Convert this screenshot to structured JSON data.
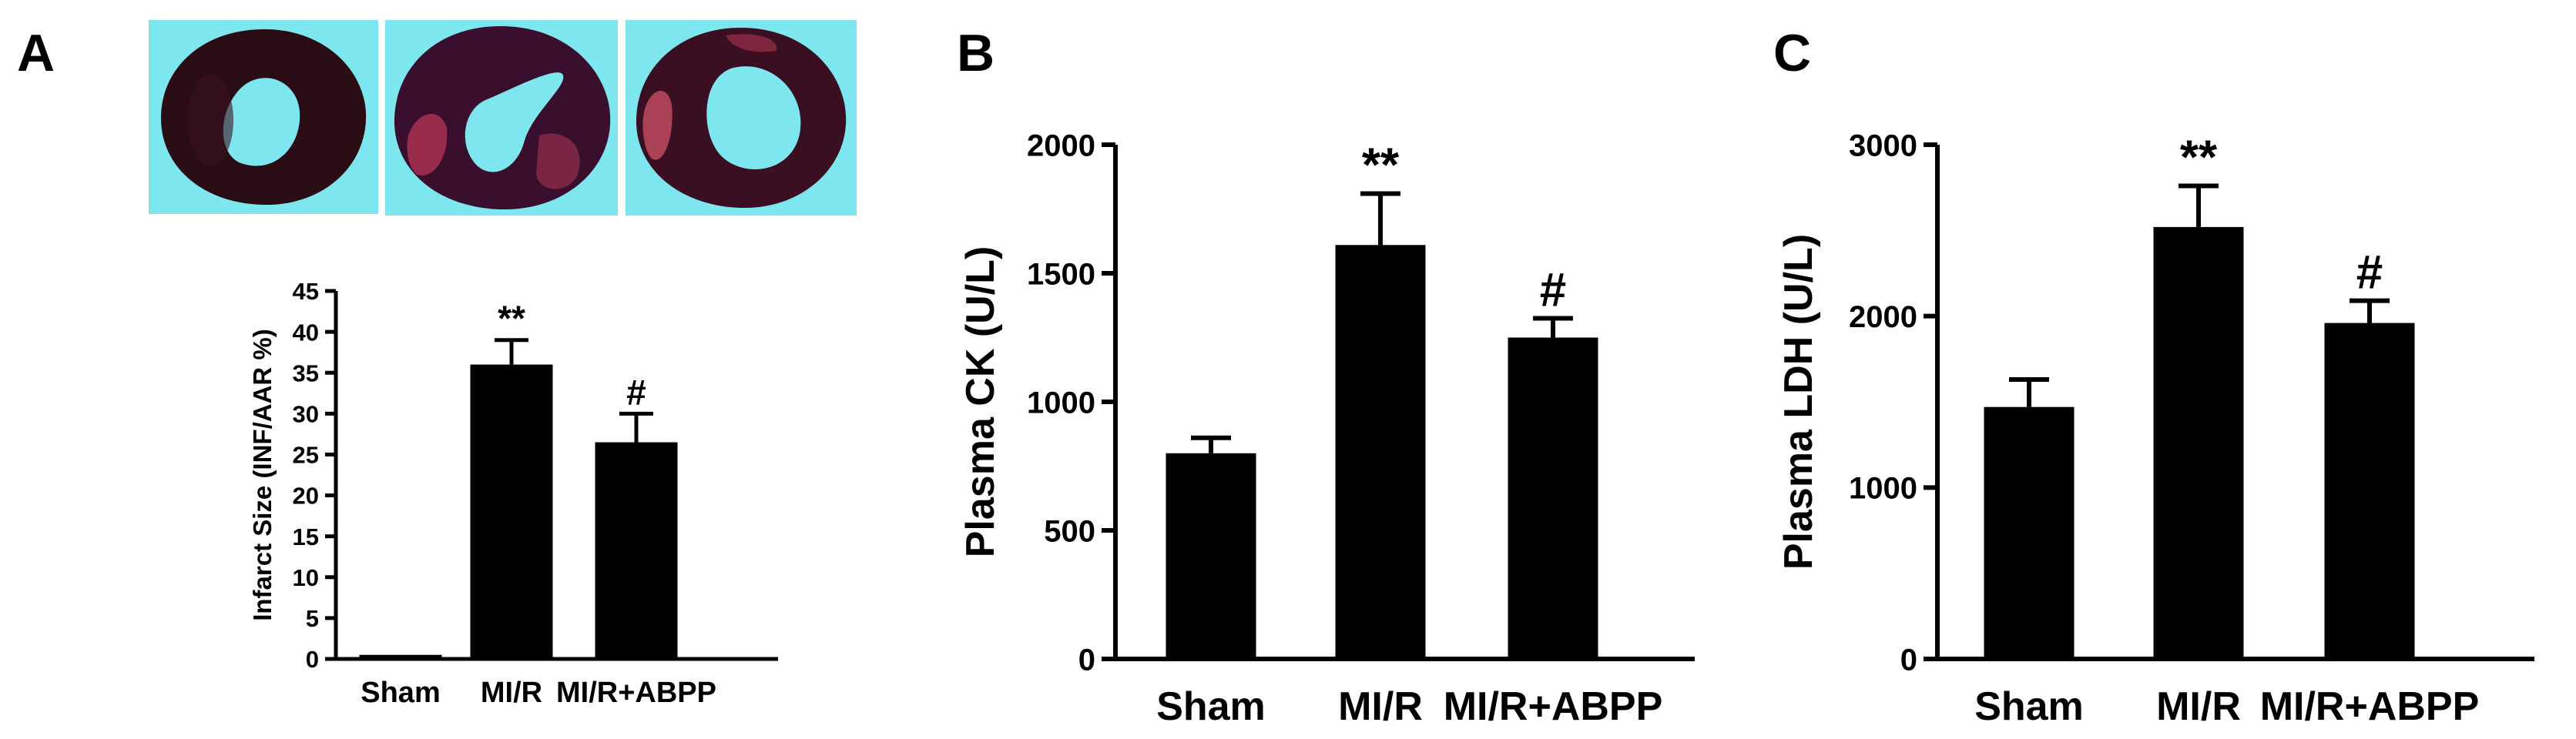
{
  "panels": {
    "a": {
      "letter": "A"
    },
    "b": {
      "letter": "B"
    },
    "c": {
      "letter": "C"
    }
  },
  "images": {
    "a": [
      {
        "name": "sham-heart-slice",
        "background": "#7ee6ee",
        "tissue": "#2a0c14",
        "highlight": "#3b1020"
      },
      {
        "name": "mir-heart-slice",
        "background": "#7ee6ee",
        "tissue": "#3a0f2e",
        "highlight": "#b03250"
      },
      {
        "name": "mir-abpp-heart-slice",
        "background": "#7ee6ee",
        "tissue": "#3b0f22",
        "highlight": "#c04a5e"
      }
    ]
  },
  "chart_data": [
    {
      "id": "a",
      "type": "bar",
      "categories": [
        "Sham",
        "MI/R",
        "MI/R+ABPP"
      ],
      "values": [
        0.5,
        36,
        26.5
      ],
      "errors": [
        0,
        3,
        3.5
      ],
      "annotations": [
        "",
        "**",
        "#"
      ],
      "title": "",
      "xlabel": "",
      "ylabel": "Infarct Size (INF/AAR %)",
      "ylim": [
        0,
        45
      ],
      "yticks": [
        0,
        5,
        10,
        15,
        20,
        25,
        30,
        35,
        40,
        45
      ],
      "grid": false,
      "bar_color": "#000000"
    },
    {
      "id": "b",
      "type": "bar",
      "categories": [
        "Sham",
        "MI/R",
        "MI/R+ABPP"
      ],
      "values": [
        800,
        1610,
        1250
      ],
      "errors": [
        60,
        200,
        75
      ],
      "annotations": [
        "",
        "**",
        "#"
      ],
      "title": "",
      "xlabel": "",
      "ylabel": "Plasma CK (U/L)",
      "ylim": [
        0,
        2000
      ],
      "yticks": [
        0,
        500,
        1000,
        1500,
        2000
      ],
      "grid": false,
      "bar_color": "#000000"
    },
    {
      "id": "c",
      "type": "bar",
      "categories": [
        "Sham",
        "MI/R",
        "MI/R+ABPP"
      ],
      "values": [
        1470,
        2520,
        1960
      ],
      "errors": [
        160,
        240,
        130
      ],
      "annotations": [
        "",
        "**",
        "#"
      ],
      "title": "",
      "xlabel": "",
      "ylabel": "Plasma LDH (U/L)",
      "ylim": [
        0,
        3000
      ],
      "yticks": [
        0,
        1000,
        2000,
        3000
      ],
      "grid": false,
      "bar_color": "#000000"
    }
  ]
}
